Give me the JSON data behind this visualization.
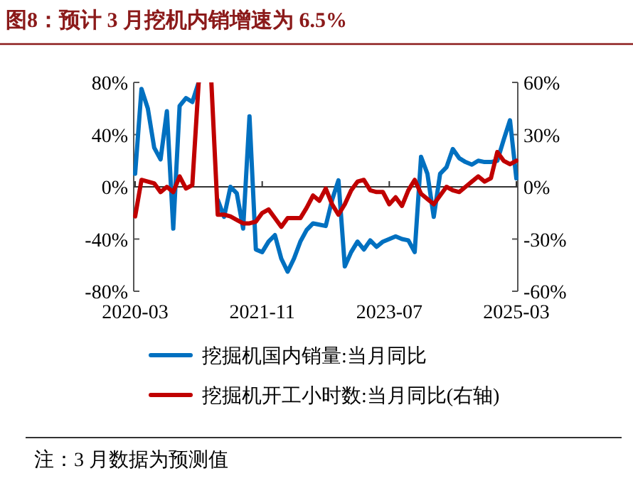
{
  "chart_data": {
    "type": "line",
    "title": "图8：预计 3 月挖机内销增速为 6.5%",
    "annotations": [
      "注：3 月数据为预测值"
    ],
    "x": [
      "2020-03",
      "2020-04",
      "2020-05",
      "2020-06",
      "2020-07",
      "2020-08",
      "2020-09",
      "2020-10",
      "2020-11",
      "2020-12",
      "2021-01",
      "2021-02",
      "2021-03",
      "2021-04",
      "2021-05",
      "2021-06",
      "2021-07",
      "2021-08",
      "2021-09",
      "2021-10",
      "2021-11",
      "2021-12",
      "2022-01",
      "2022-02",
      "2022-03",
      "2022-04",
      "2022-05",
      "2022-06",
      "2022-07",
      "2022-08",
      "2022-09",
      "2022-10",
      "2022-11",
      "2022-12",
      "2023-01",
      "2023-02",
      "2023-03",
      "2023-04",
      "2023-05",
      "2023-06",
      "2023-07",
      "2023-08",
      "2023-09",
      "2023-10",
      "2023-11",
      "2023-12",
      "2024-01",
      "2024-02",
      "2024-03",
      "2024-04",
      "2024-05",
      "2024-06",
      "2024-07",
      "2024-08",
      "2024-09",
      "2024-10",
      "2024-11",
      "2024-12",
      "2025-01",
      "2025-02",
      "2025-03"
    ],
    "series": [
      {
        "name": "挖掘机国内销量:当月同比",
        "color": "#0070c0",
        "values": [
          10,
          75,
          60,
          30,
          21,
          58,
          -32,
          62,
          68,
          65,
          80,
          null,
          null,
          -10,
          -23,
          0,
          -5,
          -32,
          54,
          -48,
          -50,
          -42,
          -37,
          -55,
          -65,
          -55,
          -42,
          -33,
          -28,
          -29,
          -30,
          -10,
          5,
          -61,
          -50,
          -42,
          -48,
          -41,
          -46,
          -42,
          -40,
          -38,
          -40,
          -41,
          -50,
          23,
          10,
          -23,
          10,
          15,
          29,
          22,
          19,
          17,
          20,
          19,
          19,
          20,
          36,
          51,
          6.5
        ]
      },
      {
        "name": "挖掘机开工小时数:当月同比(右轴)",
        "color": "#c00000",
        "axis": "y2",
        "values": [
          -17,
          4,
          3,
          2,
          -3,
          0,
          -3,
          6,
          -1,
          1,
          60,
          null,
          60,
          -16,
          -16,
          -17,
          -19,
          -21,
          -21,
          -20,
          -15,
          -13,
          -18,
          -23,
          -18,
          -18,
          -18,
          -12,
          -5,
          -8,
          -1,
          -10,
          -16,
          -10,
          -2,
          3,
          4,
          -2,
          -3,
          -3,
          -10,
          -6,
          -11,
          -2,
          4,
          -4,
          -7,
          -10,
          -5,
          0,
          -2,
          -3,
          0,
          3,
          6,
          3,
          5,
          20,
          15,
          13,
          15
        ]
      }
    ],
    "xlim": [
      "2020-03",
      "2025-03"
    ],
    "xticks": [
      "2020-03",
      "2021-11",
      "2023-07",
      "2025-03"
    ],
    "ylim": [
      -80,
      80
    ],
    "yticks": [
      {
        "value": -80,
        "label": "-80%"
      },
      {
        "value": -40,
        "label": "-40%"
      },
      {
        "value": 0,
        "label": "0%"
      },
      {
        "value": 40,
        "label": "40%"
      },
      {
        "value": 80,
        "label": "80%"
      }
    ],
    "y2lim": [
      -60,
      60
    ],
    "y2ticks": [
      {
        "value": -60,
        "label": "-60%"
      },
      {
        "value": -30,
        "label": "-30%"
      },
      {
        "value": 0,
        "label": "0%"
      },
      {
        "value": 30,
        "label": "30%"
      },
      {
        "value": 60,
        "label": "60%"
      }
    ],
    "legend": "bottom",
    "line_style": "solid"
  }
}
